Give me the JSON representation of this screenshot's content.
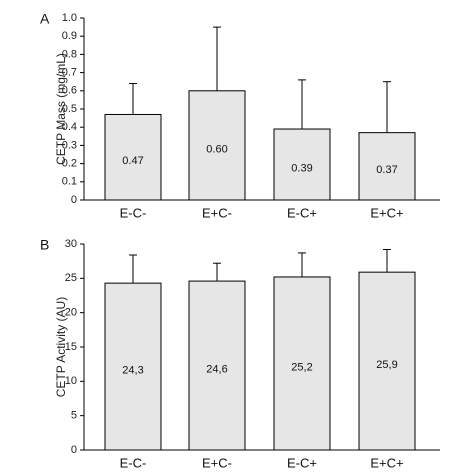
{
  "chart_data": [
    {
      "panel": "A",
      "type": "bar",
      "ylabel": "CETP Mass (mg/mL)",
      "categories": [
        "E-C-",
        "E+C-",
        "E-C+",
        "E+C+"
      ],
      "values": [
        0.47,
        0.6,
        0.39,
        0.37
      ],
      "value_labels": [
        "0.47",
        "0.60",
        "0.39",
        "0.37"
      ],
      "error_upper": [
        0.64,
        0.95,
        0.66,
        0.65
      ],
      "ylim": [
        0,
        1.0
      ],
      "yticks": [
        0,
        0.1,
        0.2,
        0.3,
        0.4,
        0.5,
        0.6,
        0.7,
        0.8,
        0.9,
        1.0
      ],
      "ytick_labels": [
        "0",
        "0.1",
        "0.2",
        "0.3",
        "0.4",
        "0.5",
        "0.6",
        "0.7",
        "0.8",
        "0.9",
        "1.0"
      ]
    },
    {
      "panel": "B",
      "type": "bar",
      "ylabel": "CETP Activity (AU)",
      "categories": [
        "E-C-",
        "E+C-",
        "E-C+",
        "E+C+"
      ],
      "values": [
        24.3,
        24.6,
        25.2,
        25.9
      ],
      "value_labels": [
        "24,3",
        "24,6",
        "25,2",
        "25,9"
      ],
      "error_upper": [
        28.4,
        27.2,
        28.7,
        29.2
      ],
      "ylim": [
        0,
        30
      ],
      "yticks": [
        0,
        5,
        10,
        15,
        20,
        25,
        30
      ],
      "ytick_labels": [
        "0",
        "5",
        "10",
        "15",
        "20",
        "25",
        "30"
      ]
    }
  ],
  "colors": {
    "bar_fill": "#e6e6e6",
    "bar_stroke": "#000000",
    "axis": "#000000"
  }
}
